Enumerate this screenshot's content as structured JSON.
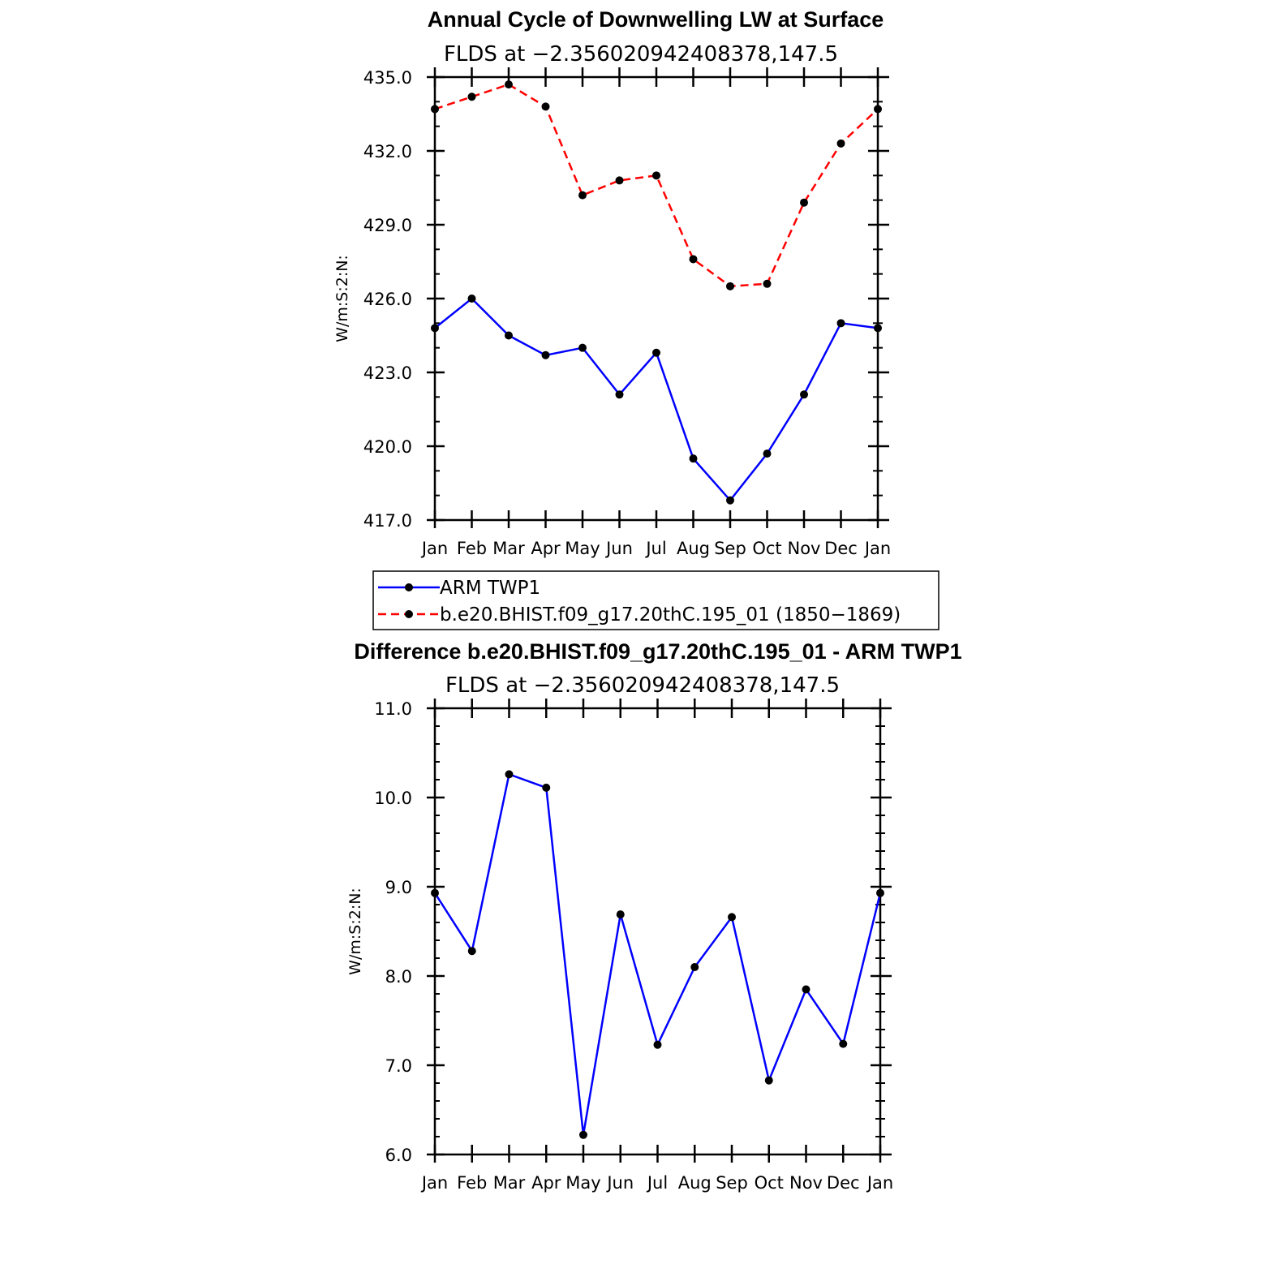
{
  "chart_data": [
    {
      "type": "line",
      "title": "Annual Cycle of Downwelling LW at Surface",
      "subtitle": "FLDS at −2.356020942408378,147.5",
      "ylabel": "W/m:S:2:N:",
      "ylim": [
        417.0,
        435.0
      ],
      "yticks": [
        "417.0",
        "420.0",
        "423.0",
        "426.0",
        "429.0",
        "432.0",
        "435.0"
      ],
      "categories": [
        "Jan",
        "Feb",
        "Mar",
        "Apr",
        "May",
        "Jun",
        "Jul",
        "Aug",
        "Sep",
        "Oct",
        "Nov",
        "Dec",
        "Jan"
      ],
      "series": [
        {
          "name": "ARM TWP1",
          "color": "#0000ff",
          "dash": "solid",
          "values": [
            424.8,
            426.0,
            424.5,
            423.7,
            424.0,
            422.1,
            423.8,
            419.5,
            417.8,
            419.7,
            422.1,
            425.0,
            424.8
          ]
        },
        {
          "name": "b.e20.BHIST.f09_g17.20thC.195_01 (1850−1869)",
          "color": "#ff0000",
          "dash": "dashed",
          "values": [
            433.7,
            434.2,
            434.7,
            433.8,
            430.2,
            430.8,
            431.0,
            427.6,
            426.5,
            426.6,
            429.9,
            432.3,
            433.7
          ]
        }
      ],
      "legend": "bottom"
    },
    {
      "type": "line",
      "title": "Difference b.e20.BHIST.f09_g17.20thC.195_01 - ARM TWP1",
      "subtitle": "FLDS at −2.356020942408378,147.5",
      "ylabel": "W/m:S:2:N:",
      "ylim": [
        6.0,
        11.0
      ],
      "yticks": [
        "6.0",
        "7.0",
        "8.0",
        "9.0",
        "10.0",
        "11.0"
      ],
      "categories": [
        "Jan",
        "Feb",
        "Mar",
        "Apr",
        "May",
        "Jun",
        "Jul",
        "Aug",
        "Sep",
        "Oct",
        "Nov",
        "Dec",
        "Jan"
      ],
      "series": [
        {
          "color": "#0000ff",
          "dash": "solid",
          "values": [
            8.93,
            8.28,
            10.26,
            10.11,
            6.22,
            8.69,
            7.23,
            8.1,
            8.66,
            6.83,
            7.85,
            7.24,
            8.93
          ]
        }
      ]
    }
  ]
}
